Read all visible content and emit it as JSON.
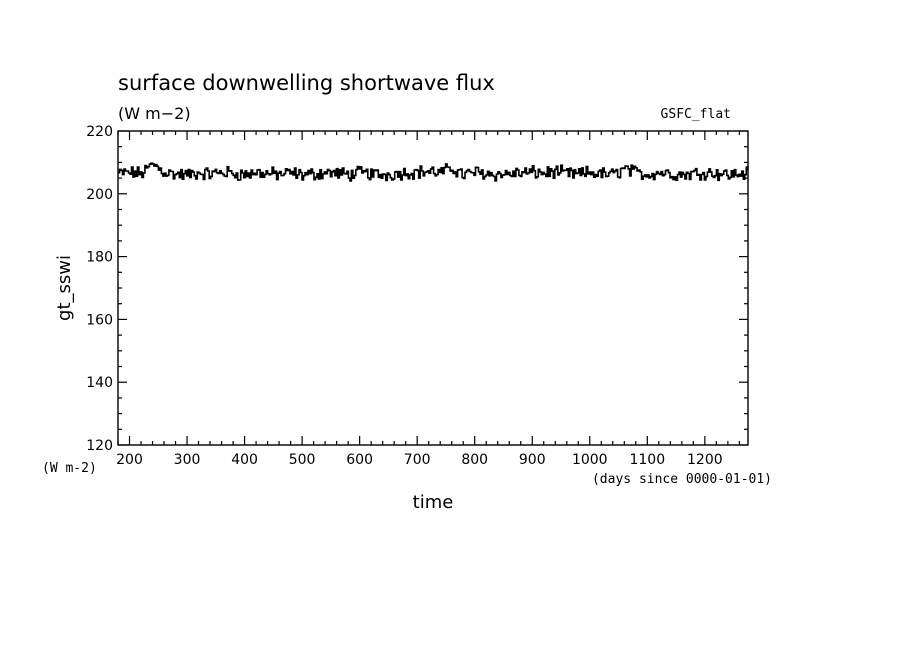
{
  "chart_data": {
    "type": "line",
    "title": "surface downwelling shortwave flux",
    "units": "(W m−2)",
    "dataset": "GSFC_flat",
    "xlabel": "time",
    "x_units": "(days since 0000-01-01)",
    "ylabel": "gt_sswi",
    "y_units": "(W m-2)",
    "xlim": [
      180,
      1275
    ],
    "ylim": [
      120,
      220
    ],
    "x_ticks": [
      200,
      300,
      400,
      500,
      600,
      700,
      800,
      900,
      1000,
      1100,
      1200
    ],
    "x_tick_labels": [
      "200",
      "300",
      "400",
      "500",
      "600",
      "700",
      "800",
      "900",
      "1000",
      "1100",
      "1200"
    ],
    "y_ticks": [
      120,
      140,
      160,
      180,
      200,
      220
    ],
    "y_tick_labels": [
      "120",
      "140",
      "160",
      "180",
      "200",
      "220"
    ],
    "grid": false,
    "series": [
      {
        "x": [
          180,
          200,
          220,
          240,
          260,
          280,
          300,
          320,
          340,
          360,
          380,
          400,
          420,
          440,
          460,
          480,
          500,
          520,
          540,
          560,
          580,
          600,
          620,
          640,
          660,
          680,
          700,
          720,
          740,
          760,
          780,
          800,
          820,
          840,
          860,
          880,
          900,
          920,
          940,
          960,
          980,
          1000,
          1020,
          1040,
          1060,
          1080,
          1100,
          1120,
          1140,
          1160,
          1180,
          1200,
          1220,
          1240,
          1260,
          1275
        ],
        "y": [
          206.5,
          206.8,
          206.4,
          209.5,
          206.8,
          206.2,
          206.0,
          206.7,
          206.3,
          206.9,
          206.5,
          206.1,
          206.8,
          206.4,
          206.2,
          206.6,
          206.0,
          206.3,
          206.8,
          206.5,
          206.1,
          206.7,
          206.3,
          206.0,
          206.4,
          206.8,
          206.9,
          207.2,
          206.6,
          208.2,
          206.0,
          206.9,
          206.5,
          206.1,
          206.4,
          206.6,
          206.8,
          206.6,
          207.0,
          206.4,
          206.2,
          206.8,
          206.3,
          206.1,
          208.0,
          206.6,
          206.2,
          206.9,
          206.4,
          206.1,
          206.5,
          206.8,
          206.6,
          206.0,
          206.4,
          206.6
        ]
      }
    ]
  }
}
